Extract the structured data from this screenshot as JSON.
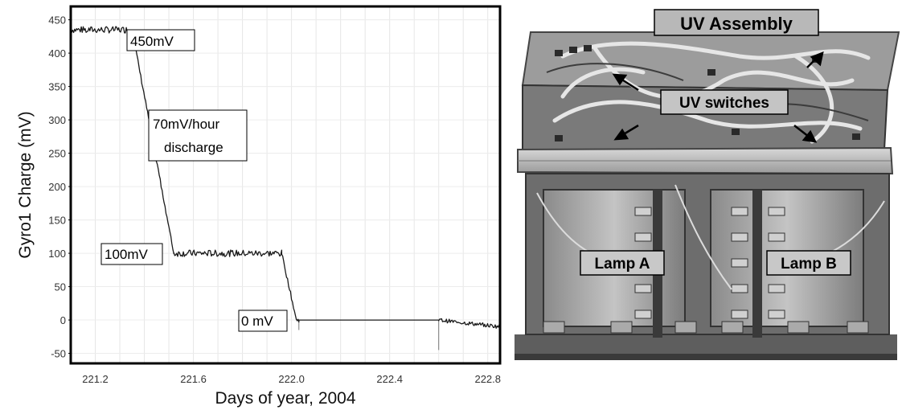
{
  "chart_data": {
    "type": "line",
    "xlabel": "Days of year, 2004",
    "ylabel": "Gyro1 Charge (mV)",
    "xlim": [
      221.1,
      222.85
    ],
    "ylim": [
      -65,
      470
    ],
    "xticks": [
      "221.2",
      "221.6",
      "222.0",
      "222.4",
      "222.8"
    ],
    "yticks": [
      "450",
      "400",
      "350",
      "300",
      "250",
      "200",
      "150",
      "100",
      "50",
      "0",
      "-50"
    ],
    "grid": true,
    "series": [
      {
        "values_x": [
          221.1,
          221.35,
          221.52,
          221.96,
          222.02,
          222.03,
          222.6,
          222.85
        ],
        "values_y": [
          435,
          435,
          100,
          100,
          0,
          0,
          0,
          -10
        ]
      }
    ],
    "annotations": [
      "450mV",
      "70mV/hour",
      "discharge",
      "100mV",
      "0 mV"
    ]
  },
  "photo": {
    "title": "UV Assembly",
    "labels": {
      "uv_switches": "UV switches",
      "lamp_a": "Lamp A",
      "lamp_b": "Lamp B"
    }
  }
}
